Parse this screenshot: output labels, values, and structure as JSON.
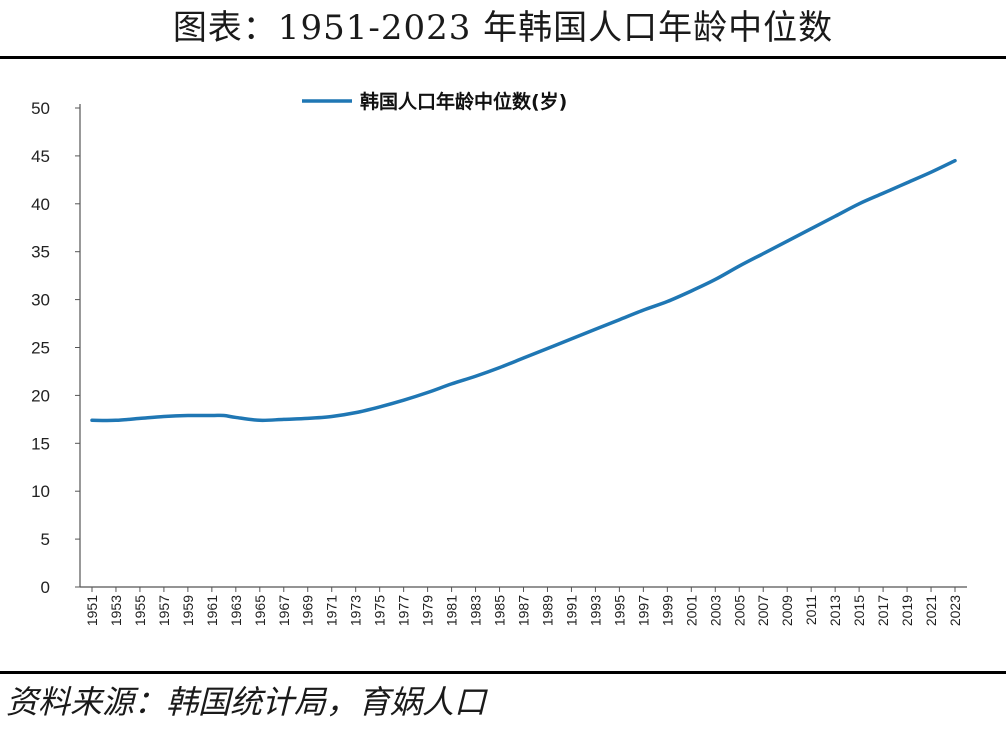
{
  "title": "图表：1951-2023 年韩国人口年龄中位数",
  "source": "资料来源：韩国统计局，育娲人口",
  "colors": {
    "series": "#1f77b4",
    "axis": "#555555"
  },
  "chart_data": {
    "type": "line",
    "title": "图表：1951-2023 年韩国人口年龄中位数",
    "xlabel": "",
    "ylabel": "",
    "ylim": [
      0,
      50
    ],
    "yticks": [
      0,
      5,
      10,
      15,
      20,
      25,
      30,
      35,
      40,
      45,
      50
    ],
    "xticks": [
      "1951",
      "1953",
      "1955",
      "1957",
      "1959",
      "1961",
      "1963",
      "1965",
      "1967",
      "1969",
      "1971",
      "1973",
      "1975",
      "1977",
      "1979",
      "1981",
      "1983",
      "1985",
      "1987",
      "1989",
      "1991",
      "1993",
      "1995",
      "1997",
      "1999",
      "2001",
      "2003",
      "2005",
      "2007",
      "2009",
      "2011",
      "2013",
      "2015",
      "2017",
      "2019",
      "2021",
      "2023"
    ],
    "legend_position": "top-center",
    "series": [
      {
        "name": "韩国人口年龄中位数(岁)",
        "x": [
          1951,
          1953,
          1955,
          1957,
          1959,
          1961,
          1962,
          1963,
          1965,
          1967,
          1969,
          1971,
          1973,
          1975,
          1977,
          1979,
          1981,
          1983,
          1985,
          1987,
          1989,
          1991,
          1993,
          1995,
          1997,
          1999,
          2001,
          2003,
          2005,
          2007,
          2009,
          2011,
          2013,
          2015,
          2017,
          2019,
          2021,
          2023
        ],
        "values": [
          17.4,
          17.4,
          17.6,
          17.8,
          17.9,
          17.9,
          17.9,
          17.7,
          17.4,
          17.5,
          17.6,
          17.8,
          18.2,
          18.8,
          19.5,
          20.3,
          21.2,
          22.0,
          22.9,
          23.9,
          24.9,
          25.9,
          26.9,
          27.9,
          28.9,
          29.8,
          30.9,
          32.1,
          33.5,
          34.8,
          36.1,
          37.4,
          38.7,
          40.0,
          41.1,
          42.2,
          43.3,
          44.5
        ]
      }
    ]
  }
}
